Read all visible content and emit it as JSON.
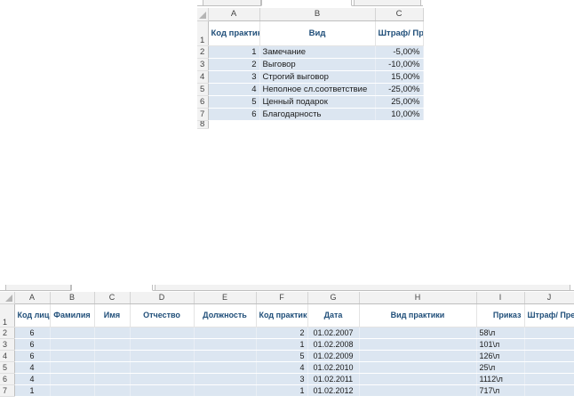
{
  "sheet_top": {
    "columns": [
      "A",
      "B",
      "C"
    ],
    "header_row": "1",
    "headers": [
      "Код практики",
      "Вид",
      "Штраф/ Премия"
    ],
    "rows": [
      {
        "row": "2",
        "code": "1",
        "kind": "Замечание",
        "value": "-5,00%"
      },
      {
        "row": "3",
        "code": "2",
        "kind": "Выговор",
        "value": "-10,00%"
      },
      {
        "row": "4",
        "code": "3",
        "kind": "Строгий выговор",
        "value": "15,00%"
      },
      {
        "row": "5",
        "code": "4",
        "kind": "Неполное сл.соответствие",
        "value": "-25,00%"
      },
      {
        "row": "6",
        "code": "5",
        "kind": "Ценный подарок",
        "value": "25,00%"
      },
      {
        "row": "7",
        "code": "6",
        "kind": "Благодарность",
        "value": "10,00%"
      }
    ],
    "last_row_partial": "8"
  },
  "sheet_bottom": {
    "columns": [
      "A",
      "B",
      "C",
      "D",
      "E",
      "F",
      "G",
      "H",
      "I",
      "J"
    ],
    "header_row": "1",
    "headers": [
      "Код лица",
      "Фамилия",
      "Имя",
      "Отчество",
      "Должность",
      "Код практики",
      "Дата",
      "Вид практики",
      "Приказ",
      "Штраф/ Премия"
    ],
    "rows": [
      {
        "row": "2",
        "person": "6",
        "practice": "2",
        "date": "01.02.2007",
        "order": "58\\л"
      },
      {
        "row": "3",
        "person": "6",
        "practice": "1",
        "date": "01.02.2008",
        "order": "101\\л"
      },
      {
        "row": "4",
        "person": "6",
        "practice": "5",
        "date": "01.02.2009",
        "order": "126\\л"
      },
      {
        "row": "5",
        "person": "4",
        "practice": "4",
        "date": "01.02.2010",
        "order": "25\\л"
      },
      {
        "row": "6",
        "person": "4",
        "practice": "3",
        "date": "01.02.2011",
        "order": "1112\\л"
      },
      {
        "row": "7",
        "person": "1",
        "practice": "1",
        "date": "01.02.2012",
        "order": "717\\л"
      }
    ]
  }
}
